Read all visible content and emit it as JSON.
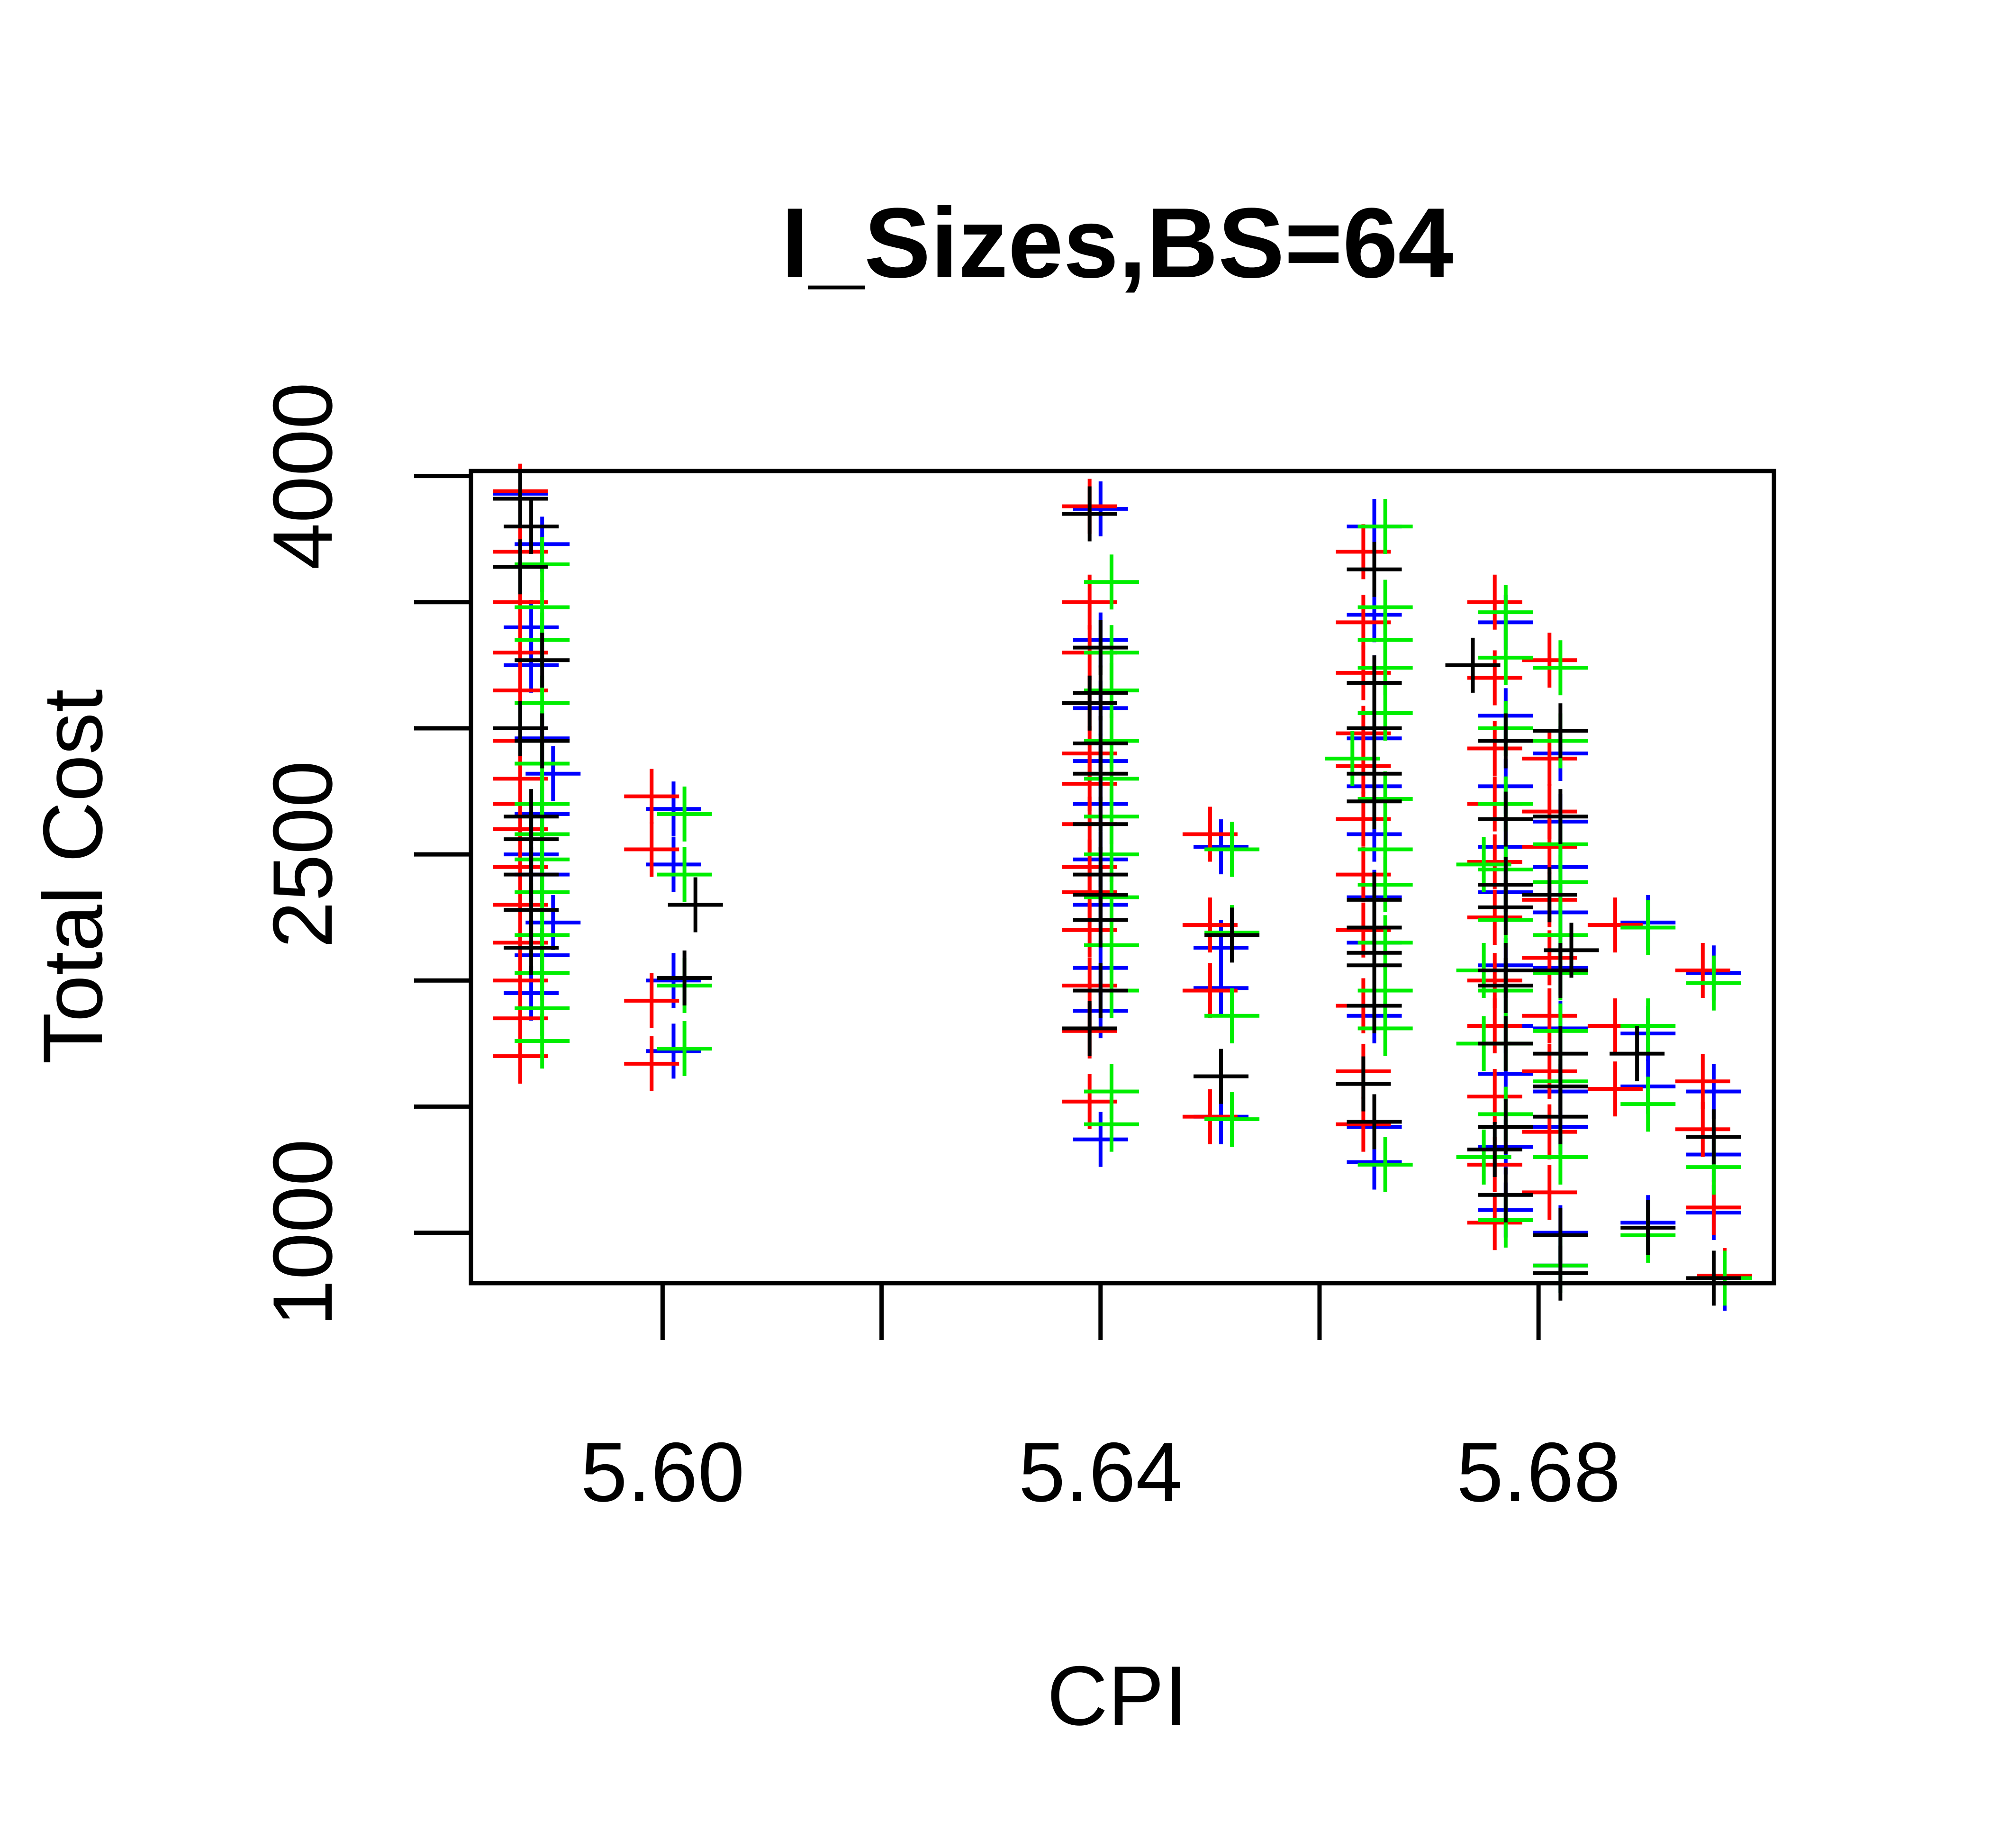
{
  "chart_data": {
    "type": "scatter",
    "title": "I_Sizes,BS=64",
    "xlabel": "CPI",
    "ylabel": "Total Cost",
    "xlim": [
      5.5825,
      5.7015
    ],
    "ylim": [
      800,
      4020
    ],
    "x_ticks": [
      5.6,
      5.62,
      5.64,
      5.66,
      5.68
    ],
    "x_tick_labels": [
      "5.60",
      "",
      "5.64",
      "",
      "5.68"
    ],
    "y_ticks": [
      1000,
      1500,
      2000,
      2500,
      3000,
      3500,
      4000
    ],
    "y_tick_labels": [
      "1000",
      "",
      "",
      "2500",
      "",
      "",
      "4000"
    ],
    "grid": false,
    "marker": "+",
    "series_colors": [
      "#0000FF",
      "#FF0000",
      "#00EE00",
      "#000000"
    ],
    "series": [
      {
        "color": "#0000FF",
        "points": [
          [
            5.587,
            3930
          ],
          [
            5.589,
            3730
          ],
          [
            5.588,
            3400
          ],
          [
            5.588,
            3250
          ],
          [
            5.589,
            2960
          ],
          [
            5.59,
            2820
          ],
          [
            5.589,
            2660
          ],
          [
            5.588,
            2500
          ],
          [
            5.589,
            2420
          ],
          [
            5.59,
            2230
          ],
          [
            5.589,
            2100
          ],
          [
            5.588,
            1950
          ],
          [
            5.601,
            2680
          ],
          [
            5.601,
            2460
          ],
          [
            5.601,
            2000
          ],
          [
            5.601,
            1720
          ],
          [
            5.64,
            3870
          ],
          [
            5.64,
            3350
          ],
          [
            5.64,
            3080
          ],
          [
            5.64,
            2870
          ],
          [
            5.64,
            2700
          ],
          [
            5.64,
            2480
          ],
          [
            5.64,
            2300
          ],
          [
            5.64,
            2050
          ],
          [
            5.64,
            1880
          ],
          [
            5.64,
            1370
          ],
          [
            5.651,
            2530
          ],
          [
            5.651,
            2130
          ],
          [
            5.651,
            1970
          ],
          [
            5.651,
            1460
          ],
          [
            5.665,
            3800
          ],
          [
            5.665,
            3450
          ],
          [
            5.665,
            3180
          ],
          [
            5.665,
            2960
          ],
          [
            5.665,
            2770
          ],
          [
            5.665,
            2580
          ],
          [
            5.665,
            2330
          ],
          [
            5.665,
            2150
          ],
          [
            5.665,
            1860
          ],
          [
            5.665,
            1420
          ],
          [
            5.665,
            1280
          ],
          [
            5.677,
            3420
          ],
          [
            5.677,
            3050
          ],
          [
            5.677,
            2770
          ],
          [
            5.677,
            2530
          ],
          [
            5.677,
            2350
          ],
          [
            5.677,
            2060
          ],
          [
            5.677,
            1820
          ],
          [
            5.677,
            1630
          ],
          [
            5.677,
            1340
          ],
          [
            5.677,
            1090
          ],
          [
            5.682,
            2900
          ],
          [
            5.682,
            2630
          ],
          [
            5.682,
            2450
          ],
          [
            5.682,
            2270
          ],
          [
            5.682,
            2050
          ],
          [
            5.682,
            1810
          ],
          [
            5.682,
            1560
          ],
          [
            5.682,
            1420
          ],
          [
            5.682,
            1000
          ],
          [
            5.682,
            870
          ],
          [
            5.69,
            2230
          ],
          [
            5.69,
            1790
          ],
          [
            5.69,
            1580
          ],
          [
            5.69,
            1040
          ],
          [
            5.696,
            2030
          ],
          [
            5.696,
            1560
          ],
          [
            5.696,
            1310
          ],
          [
            5.696,
            1080
          ],
          [
            5.697,
            800
          ]
        ]
      },
      {
        "color": "#FF0000",
        "points": [
          [
            5.587,
            3940
          ],
          [
            5.587,
            3700
          ],
          [
            5.587,
            3500
          ],
          [
            5.587,
            3300
          ],
          [
            5.587,
            3150
          ],
          [
            5.587,
            2950
          ],
          [
            5.587,
            2800
          ],
          [
            5.587,
            2700
          ],
          [
            5.587,
            2600
          ],
          [
            5.587,
            2450
          ],
          [
            5.587,
            2300
          ],
          [
            5.587,
            2150
          ],
          [
            5.587,
            2000
          ],
          [
            5.587,
            1850
          ],
          [
            5.587,
            1700
          ],
          [
            5.599,
            2730
          ],
          [
            5.599,
            2520
          ],
          [
            5.599,
            1920
          ],
          [
            5.599,
            1670
          ],
          [
            5.639,
            3880
          ],
          [
            5.639,
            3500
          ],
          [
            5.639,
            3300
          ],
          [
            5.639,
            3100
          ],
          [
            5.639,
            2900
          ],
          [
            5.639,
            2780
          ],
          [
            5.639,
            2620
          ],
          [
            5.639,
            2450
          ],
          [
            5.639,
            2350
          ],
          [
            5.639,
            2200
          ],
          [
            5.639,
            1980
          ],
          [
            5.639,
            1800
          ],
          [
            5.639,
            1520
          ],
          [
            5.65,
            2580
          ],
          [
            5.65,
            2220
          ],
          [
            5.65,
            1960
          ],
          [
            5.65,
            1460
          ],
          [
            5.664,
            3700
          ],
          [
            5.664,
            3420
          ],
          [
            5.664,
            3220
          ],
          [
            5.664,
            2980
          ],
          [
            5.664,
            2850
          ],
          [
            5.664,
            2640
          ],
          [
            5.664,
            2420
          ],
          [
            5.664,
            2200
          ],
          [
            5.664,
            1900
          ],
          [
            5.664,
            1640
          ],
          [
            5.664,
            1430
          ],
          [
            5.676,
            3500
          ],
          [
            5.676,
            3200
          ],
          [
            5.676,
            2920
          ],
          [
            5.676,
            2700
          ],
          [
            5.676,
            2470
          ],
          [
            5.676,
            2250
          ],
          [
            5.676,
            2000
          ],
          [
            5.676,
            1820
          ],
          [
            5.676,
            1540
          ],
          [
            5.676,
            1270
          ],
          [
            5.676,
            1040
          ],
          [
            5.681,
            3270
          ],
          [
            5.681,
            2880
          ],
          [
            5.681,
            2670
          ],
          [
            5.681,
            2530
          ],
          [
            5.681,
            2320
          ],
          [
            5.681,
            2090
          ],
          [
            5.681,
            1860
          ],
          [
            5.681,
            1640
          ],
          [
            5.681,
            1400
          ],
          [
            5.681,
            1160
          ],
          [
            5.687,
            2220
          ],
          [
            5.687,
            1820
          ],
          [
            5.687,
            1570
          ],
          [
            5.695,
            2040
          ],
          [
            5.695,
            1600
          ],
          [
            5.695,
            1410
          ],
          [
            5.696,
            1100
          ],
          [
            5.697,
            830
          ]
        ]
      },
      {
        "color": "#00EE00",
        "points": [
          [
            5.589,
            3650
          ],
          [
            5.589,
            3480
          ],
          [
            5.589,
            3350
          ],
          [
            5.589,
            3100
          ],
          [
            5.589,
            2860
          ],
          [
            5.589,
            2700
          ],
          [
            5.589,
            2580
          ],
          [
            5.589,
            2480
          ],
          [
            5.589,
            2350
          ],
          [
            5.589,
            2180
          ],
          [
            5.589,
            2030
          ],
          [
            5.589,
            1890
          ],
          [
            5.589,
            1760
          ],
          [
            5.602,
            2660
          ],
          [
            5.602,
            2420
          ],
          [
            5.602,
            1980
          ],
          [
            5.602,
            1730
          ],
          [
            5.641,
            3580
          ],
          [
            5.641,
            3300
          ],
          [
            5.641,
            3150
          ],
          [
            5.641,
            2950
          ],
          [
            5.641,
            2800
          ],
          [
            5.641,
            2650
          ],
          [
            5.641,
            2500
          ],
          [
            5.641,
            2330
          ],
          [
            5.641,
            2140
          ],
          [
            5.641,
            1960
          ],
          [
            5.641,
            1560
          ],
          [
            5.641,
            1430
          ],
          [
            5.652,
            2520
          ],
          [
            5.652,
            2190
          ],
          [
            5.652,
            1860
          ],
          [
            5.652,
            1450
          ],
          [
            5.663,
            2880
          ],
          [
            5.666,
            3800
          ],
          [
            5.666,
            3480
          ],
          [
            5.666,
            3350
          ],
          [
            5.666,
            3240
          ],
          [
            5.666,
            3060
          ],
          [
            5.666,
            2720
          ],
          [
            5.666,
            2520
          ],
          [
            5.666,
            2380
          ],
          [
            5.666,
            2150
          ],
          [
            5.666,
            1960
          ],
          [
            5.666,
            1810
          ],
          [
            5.666,
            1270
          ],
          [
            5.675,
            2460
          ],
          [
            5.675,
            2040
          ],
          [
            5.675,
            1750
          ],
          [
            5.675,
            1300
          ],
          [
            5.677,
            3280
          ],
          [
            5.677,
            3000
          ],
          [
            5.677,
            2700
          ],
          [
            5.677,
            2440
          ],
          [
            5.677,
            2240
          ],
          [
            5.677,
            1960
          ],
          [
            5.677,
            1750
          ],
          [
            5.677,
            1470
          ],
          [
            5.677,
            1050
          ],
          [
            5.677,
            3460
          ],
          [
            5.682,
            3240
          ],
          [
            5.682,
            2950
          ],
          [
            5.682,
            2540
          ],
          [
            5.682,
            2390
          ],
          [
            5.682,
            2180
          ],
          [
            5.682,
            2030
          ],
          [
            5.682,
            1800
          ],
          [
            5.682,
            1600
          ],
          [
            5.682,
            1300
          ],
          [
            5.682,
            870
          ],
          [
            5.69,
            2210
          ],
          [
            5.69,
            1820
          ],
          [
            5.69,
            1510
          ],
          [
            5.69,
            990
          ],
          [
            5.696,
            1990
          ],
          [
            5.696,
            1260
          ],
          [
            5.697,
            820
          ]
        ]
      },
      {
        "color": "#000000",
        "points": [
          [
            5.587,
            3910
          ],
          [
            5.588,
            3800
          ],
          [
            5.587,
            3640
          ],
          [
            5.589,
            3270
          ],
          [
            5.587,
            3000
          ],
          [
            5.589,
            2950
          ],
          [
            5.588,
            2650
          ],
          [
            5.588,
            2560
          ],
          [
            5.588,
            2420
          ],
          [
            5.588,
            2280
          ],
          [
            5.588,
            2130
          ],
          [
            5.603,
            2300
          ],
          [
            5.602,
            2010
          ],
          [
            5.639,
            3850
          ],
          [
            5.64,
            3320
          ],
          [
            5.64,
            3140
          ],
          [
            5.639,
            3100
          ],
          [
            5.64,
            2940
          ],
          [
            5.64,
            2820
          ],
          [
            5.64,
            2620
          ],
          [
            5.64,
            2420
          ],
          [
            5.64,
            2340
          ],
          [
            5.64,
            2240
          ],
          [
            5.64,
            1960
          ],
          [
            5.639,
            1810
          ],
          [
            5.652,
            2180
          ],
          [
            5.651,
            1620
          ],
          [
            5.665,
            3630
          ],
          [
            5.665,
            3180
          ],
          [
            5.665,
            3000
          ],
          [
            5.665,
            2820
          ],
          [
            5.665,
            2710
          ],
          [
            5.665,
            2320
          ],
          [
            5.665,
            2210
          ],
          [
            5.665,
            2110
          ],
          [
            5.665,
            2060
          ],
          [
            5.665,
            1900
          ],
          [
            5.664,
            1590
          ],
          [
            5.665,
            1440
          ],
          [
            5.674,
            3250
          ],
          [
            5.677,
            2950
          ],
          [
            5.677,
            2640
          ],
          [
            5.677,
            2380
          ],
          [
            5.677,
            2290
          ],
          [
            5.677,
            2040
          ],
          [
            5.677,
            1980
          ],
          [
            5.677,
            1750
          ],
          [
            5.677,
            1420
          ],
          [
            5.676,
            1330
          ],
          [
            5.677,
            1150
          ],
          [
            5.682,
            2990
          ],
          [
            5.682,
            2650
          ],
          [
            5.681,
            2340
          ],
          [
            5.683,
            2120
          ],
          [
            5.682,
            2040
          ],
          [
            5.682,
            1710
          ],
          [
            5.682,
            1580
          ],
          [
            5.682,
            1460
          ],
          [
            5.682,
            990
          ],
          [
            5.682,
            840
          ],
          [
            5.689,
            1710
          ],
          [
            5.69,
            1020
          ],
          [
            5.696,
            1380
          ],
          [
            5.696,
            820
          ]
        ]
      }
    ]
  }
}
